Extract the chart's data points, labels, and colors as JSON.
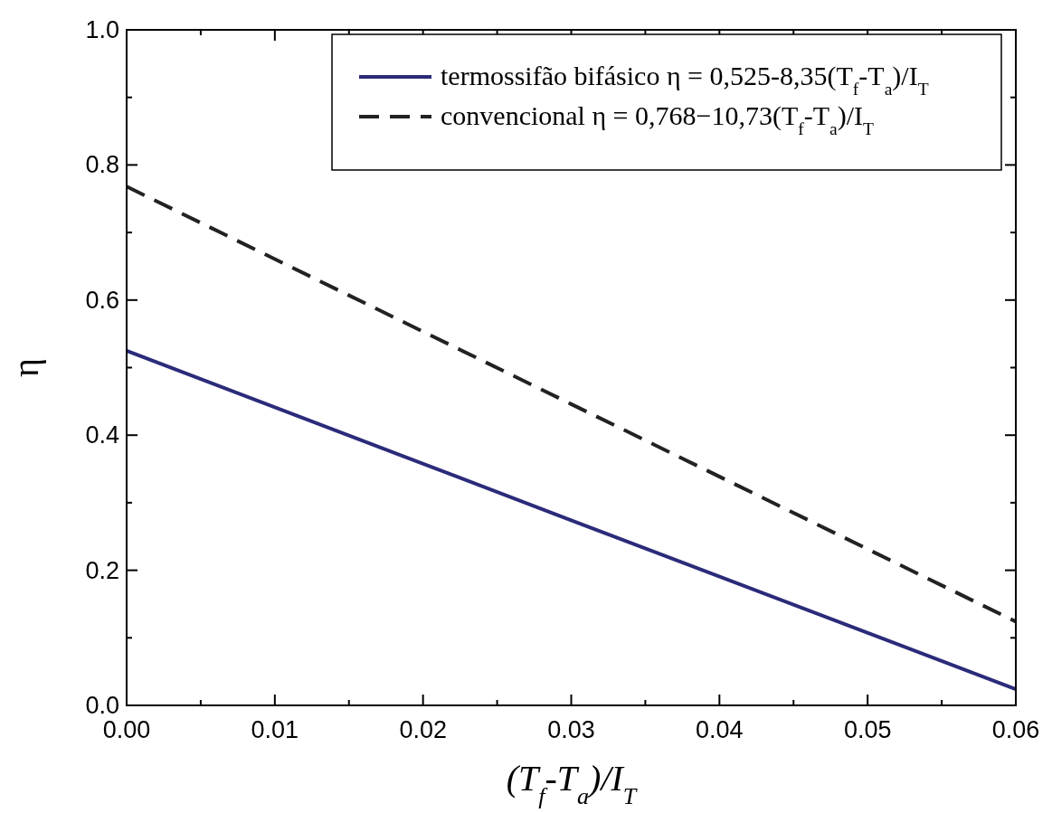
{
  "chart_data": {
    "type": "line",
    "xlabel": "(T$_{f}$-T$_{a}$)/I$_{T}$",
    "ylabel": "η",
    "x": [
      0,
      0.03,
      0.06
    ],
    "series": [
      {
        "name": "termossifão bifásico η = 0,525-8,35(T$_{f}$-T$_{a}$)/I$_{T}$",
        "color": "#2b2b7a",
        "values": [
          0.525,
          0.274,
          0.024
        ],
        "line_style": "solid"
      },
      {
        "name": "convencional η = 0,768−10,73(T$_{f}$-T$_{a}$)/I$_{T}$",
        "color": "#222222",
        "values": [
          0.768,
          0.446,
          0.124
        ],
        "line_style": "dashed"
      }
    ],
    "xlim": [
      0,
      0.06
    ],
    "ylim": [
      0,
      1
    ],
    "xticks": [
      {
        "value": 0,
        "label": "0.00"
      },
      {
        "value": 0.01,
        "label": "0.01"
      },
      {
        "value": 0.02,
        "label": "0.02"
      },
      {
        "value": 0.03,
        "label": "0.03"
      },
      {
        "value": 0.04,
        "label": "0.04"
      },
      {
        "value": 0.05,
        "label": "0.05"
      },
      {
        "value": 0.06,
        "label": "0.06"
      }
    ],
    "yticks": [
      {
        "value": 0,
        "label": "0.0"
      },
      {
        "value": 0.2,
        "label": "0.2"
      },
      {
        "value": 0.4,
        "label": "0.4"
      },
      {
        "value": 0.6,
        "label": "0.6"
      },
      {
        "value": 0.8,
        "label": "0.8"
      },
      {
        "value": 1,
        "label": "1.0"
      }
    ],
    "grid": false,
    "legend": "top right"
  }
}
